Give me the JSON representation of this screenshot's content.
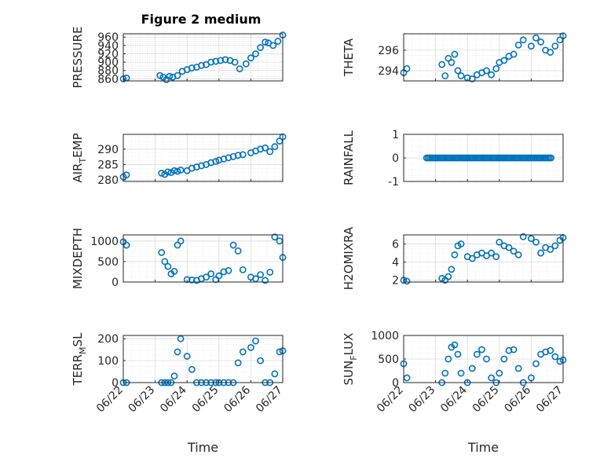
{
  "figure": {
    "title": "Figure 2 medium"
  },
  "chart_data": [
    {
      "type": "scatter",
      "title": "Figure 2 medium",
      "ylabel": "PRESSURE",
      "ylabel_sub": "",
      "xlim": [
        "06/22",
        "06/27"
      ],
      "ylim": [
        855,
        968
      ],
      "yticks": [
        860,
        880,
        900,
        920,
        940,
        960
      ],
      "xticks": [],
      "grid": true,
      "marker": "o",
      "color": "#0072BD",
      "x": [
        "06/22",
        "06/22",
        "06/23",
        "06/23",
        "06/23",
        "06/23",
        "06/23",
        "06/23",
        "06/23",
        "06/24",
        "06/24",
        "06/24",
        "06/24",
        "06/24",
        "06/24",
        "06/24",
        "06/25",
        "06/25",
        "06/25",
        "06/25",
        "06/25",
        "06/25",
        "06/26",
        "06/26",
        "06/26",
        "06/26",
        "06/26",
        "06/26",
        "06/26",
        "06/27"
      ],
      "xfrac": [
        0.0,
        0.1,
        0.15,
        0.25,
        0.35,
        0.45,
        0.55,
        0.7,
        0.85,
        0.0,
        0.15,
        0.3,
        0.45,
        0.6,
        0.75,
        0.9,
        0.05,
        0.2,
        0.35,
        0.5,
        0.65,
        0.85,
        0.0,
        0.15,
        0.3,
        0.45,
        0.55,
        0.7,
        0.85,
        0.0
      ],
      "y": [
        860,
        862,
        868,
        864,
        858,
        866,
        864,
        868,
        878,
        882,
        886,
        888,
        892,
        894,
        900,
        902,
        904,
        906,
        904,
        900,
        884,
        896,
        910,
        920,
        935,
        948,
        946,
        940,
        950,
        965
      ]
    },
    {
      "type": "scatter",
      "ylabel": "THETA",
      "ylabel_sub": "",
      "xlim": [
        "06/22",
        "06/27"
      ],
      "ylim": [
        293.0,
        297.6
      ],
      "yticks": [
        294,
        296
      ],
      "xticks": [],
      "grid": true,
      "marker": "o",
      "color": "#0072BD",
      "x": [
        "06/22",
        "06/22",
        "06/23",
        "06/23",
        "06/23",
        "06/23",
        "06/23",
        "06/23",
        "06/23",
        "06/24",
        "06/24",
        "06/24",
        "06/24",
        "06/24",
        "06/24",
        "06/24",
        "06/25",
        "06/25",
        "06/25",
        "06/25",
        "06/25",
        "06/25",
        "06/26",
        "06/26",
        "06/26",
        "06/26",
        "06/26",
        "06/26",
        "06/26",
        "06/27"
      ],
      "xfrac": [
        0.0,
        0.1,
        0.2,
        0.3,
        0.4,
        0.5,
        0.6,
        0.7,
        0.8,
        0.0,
        0.15,
        0.3,
        0.45,
        0.6,
        0.75,
        0.9,
        0.0,
        0.15,
        0.3,
        0.45,
        0.6,
        0.75,
        0.0,
        0.15,
        0.3,
        0.45,
        0.6,
        0.75,
        0.9,
        0.0
      ],
      "y": [
        293.8,
        294.2,
        294.6,
        293.5,
        295.2,
        294.8,
        295.6,
        294.0,
        293.5,
        293.3,
        293.2,
        293.6,
        293.8,
        294.0,
        293.6,
        294.2,
        294.8,
        295.0,
        295.4,
        295.6,
        296.5,
        297.0,
        296.4,
        297.2,
        296.8,
        296.0,
        295.8,
        296.4,
        297.0,
        297.4
      ]
    },
    {
      "type": "scatter",
      "ylabel": "AIR",
      "ylabel_sub": "T",
      "ylabel_suffix": "EMP",
      "xlim": [
        "06/22",
        "06/27"
      ],
      "ylim": [
        279.5,
        294.8
      ],
      "yticks": [
        280,
        285,
        290
      ],
      "xticks": [],
      "grid": true,
      "marker": "o",
      "color": "#0072BD",
      "x": [
        "06/22",
        "06/22",
        "06/23",
        "06/23",
        "06/23",
        "06/23",
        "06/23",
        "06/23",
        "06/23",
        "06/24",
        "06/24",
        "06/24",
        "06/24",
        "06/24",
        "06/24",
        "06/24",
        "06/25",
        "06/25",
        "06/25",
        "06/25",
        "06/25",
        "06/25",
        "06/26",
        "06/26",
        "06/26",
        "06/26",
        "06/26",
        "06/26",
        "06/26",
        "06/27"
      ],
      "xfrac": [
        0.0,
        0.1,
        0.2,
        0.3,
        0.4,
        0.5,
        0.6,
        0.7,
        0.8,
        0.0,
        0.15,
        0.3,
        0.45,
        0.6,
        0.75,
        0.9,
        0.0,
        0.15,
        0.3,
        0.45,
        0.6,
        0.75,
        0.0,
        0.15,
        0.3,
        0.45,
        0.6,
        0.75,
        0.9,
        0.0
      ],
      "y": [
        281,
        281.6,
        282.2,
        281.8,
        282.6,
        282.4,
        283.0,
        282.8,
        283.2,
        283.0,
        283.8,
        284.2,
        284.6,
        285.0,
        285.6,
        286.0,
        286.4,
        286.8,
        287.2,
        287.6,
        288.0,
        288.2,
        288.8,
        289.4,
        290.0,
        290.4,
        289.2,
        290.8,
        292.6,
        294.0
      ]
    },
    {
      "type": "scatter",
      "ylabel": "RAINFALL",
      "ylabel_sub": "",
      "xlim": [
        "06/22",
        "06/27"
      ],
      "ylim": [
        -1,
        1
      ],
      "yticks": [
        -1,
        0,
        1
      ],
      "xticks": [],
      "grid": true,
      "marker": "o",
      "color": "#0072BD",
      "x_range": [
        "06/22",
        "06/27"
      ],
      "y": [
        0
      ]
    },
    {
      "type": "scatter",
      "ylabel": "MIXDEPTH",
      "ylabel_sub": "",
      "xlim": [
        "06/22",
        "06/27"
      ],
      "ylim": [
        0,
        1150
      ],
      "yticks": [
        0,
        500,
        1000
      ],
      "xticks": [],
      "grid": true,
      "marker": "o",
      "color": "#0072BD",
      "x": [
        "06/22",
        "06/22",
        "06/23",
        "06/23",
        "06/23",
        "06/23",
        "06/23",
        "06/23",
        "06/23",
        "06/24",
        "06/24",
        "06/24",
        "06/24",
        "06/24",
        "06/24",
        "06/24",
        "06/25",
        "06/25",
        "06/25",
        "06/25",
        "06/25",
        "06/25",
        "06/26",
        "06/26",
        "06/26",
        "06/26",
        "06/26",
        "06/26",
        "06/26",
        "06/27"
      ],
      "xfrac": [
        0.0,
        0.1,
        0.2,
        0.3,
        0.4,
        0.5,
        0.6,
        0.7,
        0.8,
        0.0,
        0.15,
        0.3,
        0.45,
        0.6,
        0.75,
        0.9,
        0.0,
        0.15,
        0.3,
        0.45,
        0.6,
        0.75,
        0.0,
        0.15,
        0.3,
        0.45,
        0.6,
        0.75,
        0.9,
        0.0
      ],
      "y": [
        980,
        900,
        720,
        500,
        380,
        200,
        260,
        900,
        1000,
        60,
        50,
        40,
        80,
        120,
        200,
        60,
        150,
        250,
        280,
        900,
        760,
        300,
        120,
        80,
        180,
        40,
        240,
        1100,
        1000,
        600
      ]
    },
    {
      "type": "scatter",
      "ylabel": "H2OMIXRA",
      "ylabel_sub": "",
      "xlim": [
        "06/22",
        "06/27"
      ],
      "ylim": [
        1.8,
        7.0
      ],
      "yticks": [
        2,
        4,
        6
      ],
      "xticks": [],
      "grid": true,
      "marker": "o",
      "color": "#0072BD",
      "x": [
        "06/22",
        "06/22",
        "06/23",
        "06/23",
        "06/23",
        "06/23",
        "06/23",
        "06/23",
        "06/23",
        "06/24",
        "06/24",
        "06/24",
        "06/24",
        "06/24",
        "06/24",
        "06/24",
        "06/25",
        "06/25",
        "06/25",
        "06/25",
        "06/25",
        "06/25",
        "06/26",
        "06/26",
        "06/26",
        "06/26",
        "06/26",
        "06/26",
        "06/26",
        "06/27"
      ],
      "xfrac": [
        0.0,
        0.1,
        0.2,
        0.3,
        0.4,
        0.5,
        0.6,
        0.7,
        0.8,
        0.0,
        0.15,
        0.3,
        0.45,
        0.6,
        0.75,
        0.9,
        0.0,
        0.15,
        0.3,
        0.45,
        0.6,
        0.75,
        0.0,
        0.15,
        0.3,
        0.45,
        0.6,
        0.75,
        0.9,
        0.0
      ],
      "y": [
        2.0,
        1.9,
        2.2,
        2.0,
        2.4,
        3.2,
        4.8,
        5.8,
        6.0,
        4.6,
        4.4,
        4.8,
        5.0,
        4.7,
        5.0,
        4.6,
        6.2,
        5.8,
        5.6,
        5.2,
        4.8,
        6.8,
        6.6,
        6.2,
        5.0,
        5.6,
        5.4,
        5.8,
        6.4,
        6.7
      ]
    },
    {
      "type": "scatter",
      "ylabel": "TERR",
      "ylabel_sub": "M",
      "ylabel_suffix": "SL",
      "xlim": [
        "06/22",
        "06/27"
      ],
      "ylim": [
        0,
        215
      ],
      "yticks": [
        0,
        100,
        200
      ],
      "xticks": [
        "06/22",
        "06/23",
        "06/24",
        "06/25",
        "06/26",
        "06/27"
      ],
      "xlabel": "Time",
      "grid": true,
      "marker": "o",
      "color": "#0072BD",
      "x": [
        "06/22",
        "06/22",
        "06/23",
        "06/23",
        "06/23",
        "06/23",
        "06/23",
        "06/23",
        "06/23",
        "06/24",
        "06/24",
        "06/24",
        "06/24",
        "06/24",
        "06/24",
        "06/24",
        "06/25",
        "06/25",
        "06/25",
        "06/25",
        "06/25",
        "06/25",
        "06/26",
        "06/26",
        "06/26",
        "06/26",
        "06/26",
        "06/26",
        "06/26",
        "06/27"
      ],
      "xfrac": [
        0.0,
        0.1,
        0.2,
        0.3,
        0.4,
        0.5,
        0.6,
        0.7,
        0.8,
        0.0,
        0.15,
        0.3,
        0.45,
        0.6,
        0.75,
        0.9,
        0.0,
        0.15,
        0.3,
        0.45,
        0.6,
        0.75,
        0.0,
        0.15,
        0.3,
        0.45,
        0.6,
        0.75,
        0.9,
        0.0
      ],
      "y": [
        0,
        0,
        0,
        0,
        0,
        0,
        30,
        140,
        200,
        120,
        60,
        0,
        0,
        0,
        0,
        0,
        0,
        0,
        0,
        0,
        90,
        140,
        160,
        190,
        100,
        0,
        0,
        40,
        140,
        145
      ]
    },
    {
      "type": "scatter",
      "ylabel": "SUN",
      "ylabel_sub": "F",
      "ylabel_suffix": "LUX",
      "xlim": [
        "06/22",
        "06/27"
      ],
      "ylim": [
        0,
        1000
      ],
      "yticks": [
        0,
        500,
        1000
      ],
      "xticks": [
        "06/22",
        "06/23",
        "06/24",
        "06/25",
        "06/26",
        "06/27"
      ],
      "xlabel": "Time",
      "grid": true,
      "marker": "o",
      "color": "#0072BD",
      "x": [
        "06/22",
        "06/22",
        "06/23",
        "06/23",
        "06/23",
        "06/23",
        "06/23",
        "06/23",
        "06/23",
        "06/24",
        "06/24",
        "06/24",
        "06/24",
        "06/24",
        "06/24",
        "06/24",
        "06/25",
        "06/25",
        "06/25",
        "06/25",
        "06/25",
        "06/25",
        "06/26",
        "06/26",
        "06/26",
        "06/26",
        "06/26",
        "06/26",
        "06/26",
        "06/27"
      ],
      "xfrac": [
        0.0,
        0.1,
        0.2,
        0.3,
        0.4,
        0.5,
        0.6,
        0.7,
        0.8,
        0.0,
        0.15,
        0.3,
        0.45,
        0.6,
        0.75,
        0.9,
        0.0,
        0.15,
        0.3,
        0.45,
        0.6,
        0.75,
        0.0,
        0.15,
        0.3,
        0.45,
        0.6,
        0.75,
        0.9,
        0.0
      ],
      "y": [
        400,
        100,
        0,
        200,
        500,
        750,
        800,
        600,
        200,
        0,
        300,
        600,
        700,
        500,
        100,
        0,
        200,
        500,
        680,
        700,
        300,
        0,
        100,
        400,
        600,
        650,
        680,
        550,
        450,
        480
      ]
    }
  ]
}
